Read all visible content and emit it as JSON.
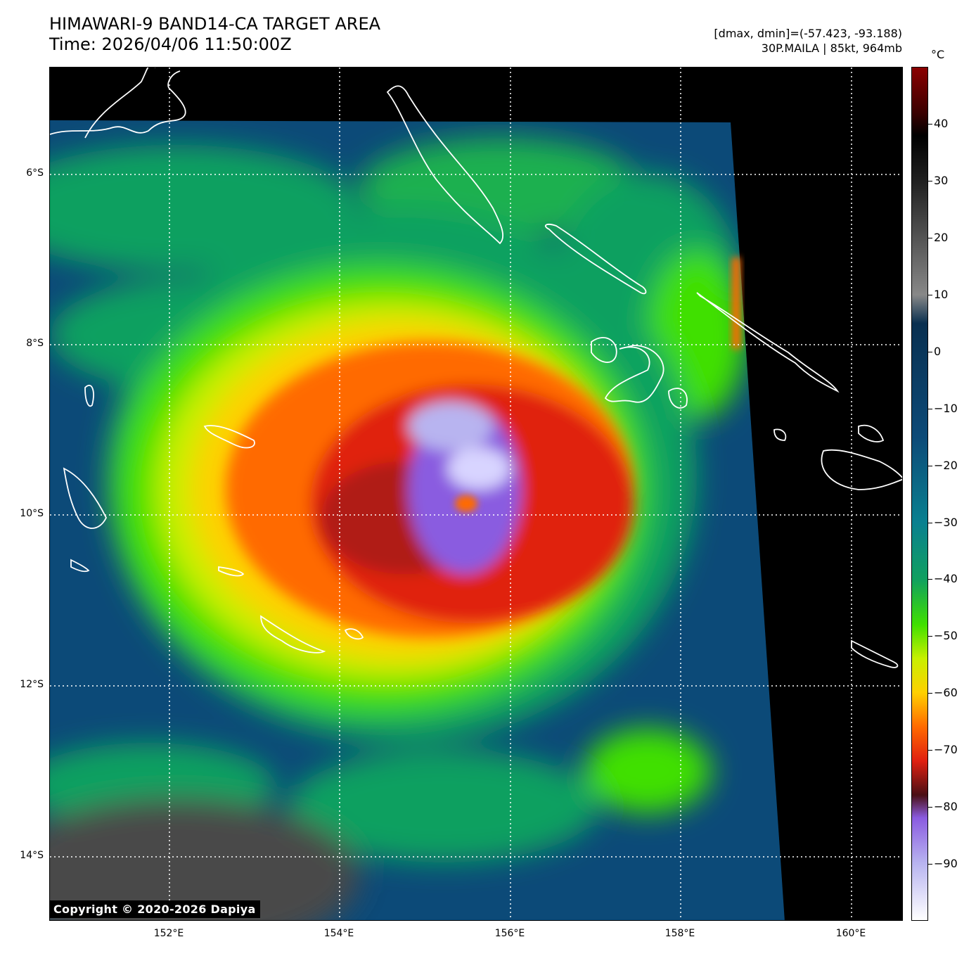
{
  "header": {
    "title_line1": "HIMAWARI-9 BAND14-CA TARGET AREA",
    "title_line2": "Time: 2026/04/06 11:50:00Z",
    "range_text": "[dmax, dmin]=(-57.423, -93.188)",
    "storm_text": "30P.MAILA | 85kt, 964mb"
  },
  "map": {
    "lat_labels": [
      "6°S",
      "8°S",
      "10°S",
      "12°S",
      "14°S"
    ],
    "lon_labels": [
      "152°E",
      "154°E",
      "156°E",
      "158°E",
      "160°E"
    ],
    "copyright": "Copyright © 2020-2026 Dapiya"
  },
  "colorbar": {
    "unit": "°C",
    "ticks": [
      "40",
      "30",
      "20",
      "10",
      "0",
      "−10",
      "−20",
      "−30",
      "−40",
      "−50",
      "−60",
      "−70",
      "−80",
      "−90"
    ],
    "tick_values": [
      40,
      30,
      20,
      10,
      0,
      -10,
      -20,
      -30,
      -40,
      -50,
      -60,
      -70,
      -80,
      -90
    ],
    "vmin": -100,
    "vmax": 50,
    "stops": [
      {
        "value": -100,
        "color": "#ffffff"
      },
      {
        "value": -90,
        "color": "#b8b4f0"
      },
      {
        "value": -82,
        "color": "#8a5be0"
      },
      {
        "value": -78,
        "color": "#4a0f14"
      },
      {
        "value": -72,
        "color": "#e02010"
      },
      {
        "value": -66,
        "color": "#ff6a00"
      },
      {
        "value": -60,
        "color": "#ffd000"
      },
      {
        "value": -54,
        "color": "#c8f000"
      },
      {
        "value": -48,
        "color": "#40e000"
      },
      {
        "value": -40,
        "color": "#10a060"
      },
      {
        "value": -30,
        "color": "#0a8090"
      },
      {
        "value": -15,
        "color": "#0c4a78"
      },
      {
        "value": 5,
        "color": "#0a3050"
      },
      {
        "value": 10,
        "color": "#888888"
      },
      {
        "value": 30,
        "color": "#202020"
      },
      {
        "value": 38,
        "color": "#000000"
      },
      {
        "value": 42,
        "color": "#3a0000"
      },
      {
        "value": 50,
        "color": "#8b0000"
      }
    ]
  }
}
